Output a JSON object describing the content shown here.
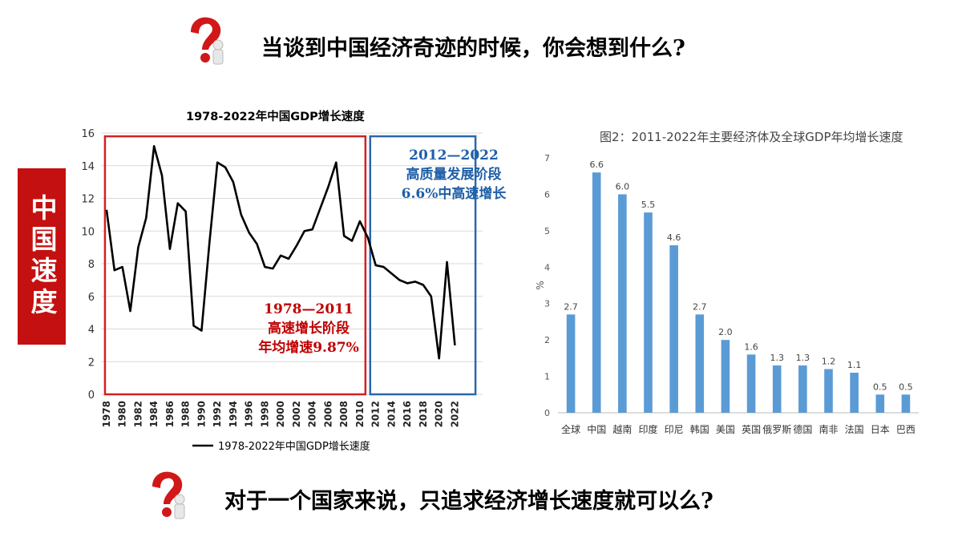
{
  "questions": {
    "top": "当谈到中国经济奇迹的时候，你会想到什么?",
    "bottom": "对于一个国家来说，只追求经济增长速度就可以么?"
  },
  "side_label": "中国速度",
  "annotations": {
    "phase1": {
      "years": "1978—2011",
      "name": "高速增长阶段",
      "rate": "年均增速9.87%"
    },
    "phase2": {
      "years": "2012—2022",
      "name": "高质量发展阶段",
      "rate": "6.6%中高速增长"
    }
  },
  "colors": {
    "accent_red": "#c41010",
    "box_red": "#d42020",
    "box_blue": "#2a67ad",
    "bar_blue": "#5b9bd5",
    "line": "#000000"
  },
  "chart_data": [
    {
      "type": "line",
      "title": "1978-2022年中国GDP增长速度",
      "legend": "1978-2022年中国GDP增长速度",
      "legend_position": "bottom",
      "ylim": [
        0,
        16
      ],
      "y_ticks": [
        "0",
        "2",
        "4",
        "6",
        "8",
        "10",
        "12",
        "14",
        "16"
      ],
      "x_ticks": [
        "1978",
        "1980",
        "1982",
        "1984",
        "1986",
        "1988",
        "1990",
        "1992",
        "1994",
        "1996",
        "1998",
        "2000",
        "2002",
        "2004",
        "2006",
        "2008",
        "2010",
        "2012",
        "2014",
        "2016",
        "2018",
        "2020",
        "2022"
      ],
      "grid": true,
      "x": [
        1978,
        1979,
        1980,
        1981,
        1982,
        1983,
        1984,
        1985,
        1986,
        1987,
        1988,
        1989,
        1990,
        1991,
        1992,
        1993,
        1994,
        1995,
        1996,
        1997,
        1998,
        1999,
        2000,
        2001,
        2002,
        2003,
        2004,
        2005,
        2006,
        2007,
        2008,
        2009,
        2010,
        2011,
        2012,
        2013,
        2014,
        2015,
        2016,
        2017,
        2018,
        2019,
        2020,
        2021,
        2022
      ],
      "series": [
        {
          "values": [
            11.3,
            7.6,
            7.8,
            5.1,
            9.0,
            10.8,
            15.2,
            13.4,
            8.9,
            11.7,
            11.2,
            4.2,
            3.9,
            9.3,
            14.2,
            13.9,
            13.0,
            11.0,
            9.9,
            9.2,
            7.8,
            7.7,
            8.5,
            8.3,
            9.1,
            10.0,
            10.1,
            11.4,
            12.7,
            14.2,
            9.7,
            9.4,
            10.6,
            9.6,
            7.9,
            7.8,
            7.4,
            7.0,
            6.8,
            6.9,
            6.7,
            6.0,
            2.2,
            8.1,
            3.0
          ]
        }
      ]
    },
    {
      "type": "bar",
      "title": "图2：2011-2022年主要经济体及全球GDP年均增长速度",
      "ylabel": "%",
      "ylim": [
        0,
        7
      ],
      "y_ticks": [
        "0",
        "1",
        "2",
        "3",
        "4",
        "5",
        "6",
        "7"
      ],
      "grid": false,
      "categories": [
        "全球",
        "中国",
        "越南",
        "印度",
        "印尼",
        "韩国",
        "美国",
        "英国",
        "俄罗斯",
        "德国",
        "南非",
        "法国",
        "日本",
        "巴西"
      ],
      "values": [
        2.7,
        6.6,
        6.0,
        5.5,
        4.6,
        2.7,
        2.0,
        1.6,
        1.3,
        1.3,
        1.2,
        1.1,
        0.5,
        0.5
      ],
      "labels": [
        "2.7",
        "6.6",
        "6.0",
        "5.5",
        "4.6",
        "2.7",
        "2.0",
        "1.6",
        "1.3",
        "1.3",
        "1.2",
        "1.1",
        "0.5",
        "0.5"
      ]
    }
  ]
}
